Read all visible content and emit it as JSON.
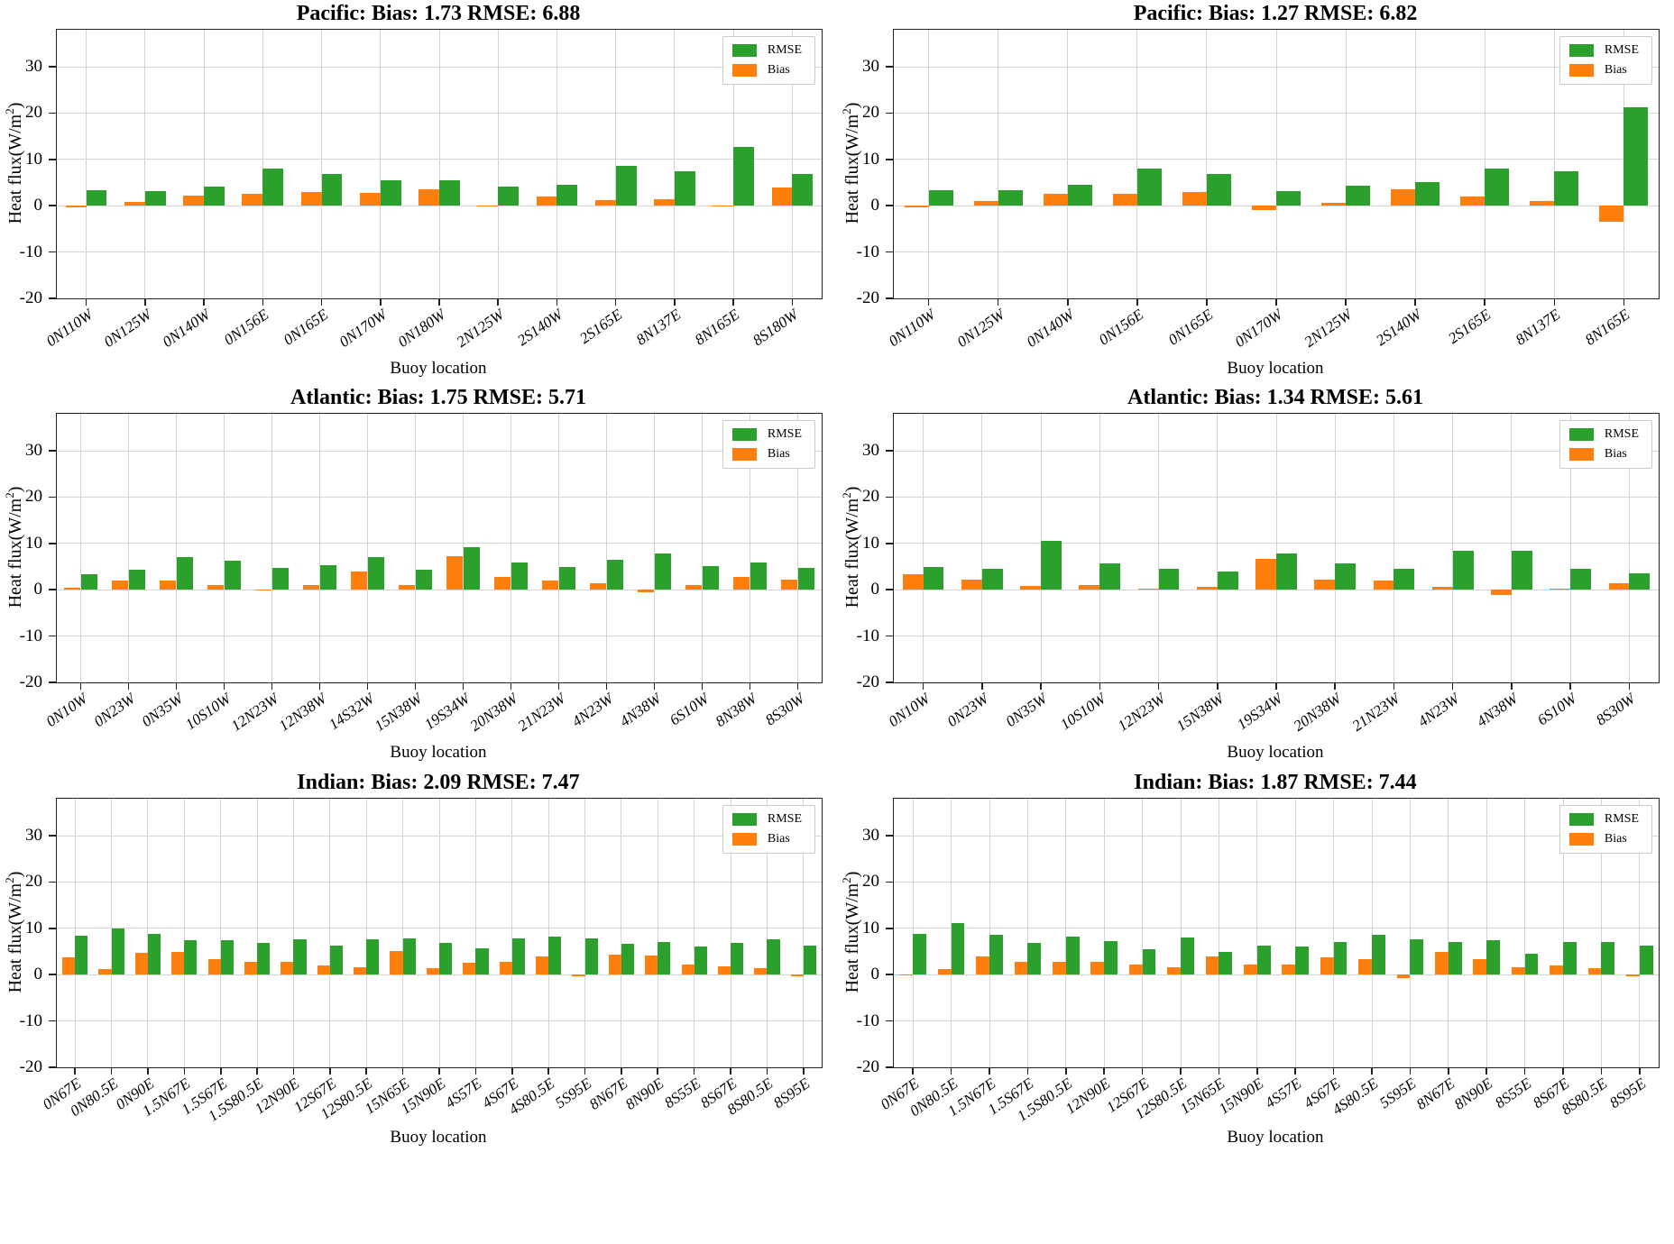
{
  "figure": {
    "background": "#ffffff"
  },
  "ylabel_parts": {
    "prefix": "Heat flux(W/m",
    "sup": "2",
    "suffix": ")"
  },
  "colors": {
    "rmse": "#2ca02c",
    "bias": "#ff7f0e",
    "grid": "#d4d4d4",
    "spine": "#212121"
  },
  "chart_data": [
    {
      "type": "bar",
      "title": "Pacific: Bias: 1.73 RMSE: 6.88",
      "xlabel": "Buoy location",
      "ylabel": "Heat flux(W/m2)",
      "ylim": [
        -20,
        38
      ],
      "yticks": [
        -20,
        -10,
        0,
        10,
        20,
        30
      ],
      "grid": true,
      "legend_position": "upper right",
      "legend": [
        {
          "label": "RMSE",
          "color": "#2ca02c"
        },
        {
          "label": "Bias",
          "color": "#ff7f0e"
        }
      ],
      "categories": [
        "0N110W",
        "0N125W",
        "0N140W",
        "0N156E",
        "0N165E",
        "0N170W",
        "0N180W",
        "2N125W",
        "2S140W",
        "2S165E",
        "8N137E",
        "8N165E",
        "8S180W"
      ],
      "series": [
        {
          "name": "Bias",
          "color": "#ff7f0e",
          "values": [
            -0.3,
            0.9,
            2.1,
            2.6,
            2.9,
            2.7,
            3.5,
            0.1,
            2.0,
            1.3,
            1.5,
            0.1,
            3.9
          ]
        },
        {
          "name": "RMSE",
          "color": "#2ca02c",
          "values": [
            3.3,
            3.1,
            4.1,
            8.0,
            6.8,
            5.5,
            5.4,
            4.1,
            4.6,
            8.7,
            7.4,
            12.7,
            6.9
          ]
        }
      ]
    },
    {
      "type": "bar",
      "title": "Pacific: Bias: 1.27 RMSE: 6.82",
      "xlabel": "Buoy location",
      "ylabel": "Heat flux(W/m2)",
      "ylim": [
        -20,
        38
      ],
      "yticks": [
        -20,
        -10,
        0,
        10,
        20,
        30
      ],
      "grid": true,
      "legend_position": "upper right",
      "legend": [
        {
          "label": "RMSE",
          "color": "#2ca02c"
        },
        {
          "label": "Bias",
          "color": "#ff7f0e"
        }
      ],
      "categories": [
        "0N110W",
        "0N125W",
        "0N140W",
        "0N156E",
        "0N165E",
        "0N170W",
        "2N125W",
        "2S140W",
        "2S165E",
        "8N137E",
        "8N165E"
      ],
      "series": [
        {
          "name": "Bias",
          "color": "#ff7f0e",
          "values": [
            -0.3,
            1.0,
            2.5,
            2.6,
            2.9,
            -0.9,
            0.6,
            3.5,
            1.9,
            1.0,
            -3.5
          ]
        },
        {
          "name": "RMSE",
          "color": "#2ca02c",
          "values": [
            3.4,
            3.3,
            4.6,
            8.0,
            6.9,
            3.1,
            4.4,
            5.2,
            8.0,
            7.5,
            21.3
          ]
        }
      ]
    },
    {
      "type": "bar",
      "title": "Atlantic: Bias: 1.75 RMSE: 5.71",
      "xlabel": "Buoy location",
      "ylabel": "Heat flux(W/m2)",
      "ylim": [
        -20,
        38
      ],
      "yticks": [
        -20,
        -10,
        0,
        10,
        20,
        30
      ],
      "grid": true,
      "legend_position": "upper right",
      "legend": [
        {
          "label": "RMSE",
          "color": "#2ca02c"
        },
        {
          "label": "Bias",
          "color": "#ff7f0e"
        }
      ],
      "categories": [
        "0N10W",
        "0N23W",
        "0N35W",
        "10S10W",
        "12N23W",
        "12N38W",
        "14S32W",
        "15N38W",
        "19S34W",
        "20N38W",
        "21N23W",
        "4N23W",
        "4N38W",
        "6S10W",
        "8N38W",
        "8S30W"
      ],
      "series": [
        {
          "name": "Bias",
          "color": "#ff7f0e",
          "values": [
            0.4,
            2.0,
            2.0,
            1.0,
            0.1,
            1.1,
            4.0,
            1.0,
            7.2,
            2.7,
            1.9,
            1.4,
            -0.5,
            1.0,
            2.7,
            2.2
          ]
        },
        {
          "name": "RMSE",
          "color": "#2ca02c",
          "values": [
            3.3,
            4.3,
            7.0,
            6.3,
            4.8,
            5.3,
            7.1,
            4.4,
            9.1,
            5.9,
            5.0,
            6.4,
            7.8,
            5.1,
            5.9,
            4.8
          ]
        }
      ]
    },
    {
      "type": "bar",
      "title": "Atlantic: Bias: 1.34 RMSE: 5.61",
      "xlabel": "Buoy location",
      "ylabel": "Heat flux(W/m2)",
      "ylim": [
        -20,
        38
      ],
      "yticks": [
        -20,
        -10,
        0,
        10,
        20,
        30
      ],
      "grid": true,
      "legend_position": "upper right",
      "legend": [
        {
          "label": "RMSE",
          "color": "#2ca02c"
        },
        {
          "label": "Bias",
          "color": "#ff7f0e"
        }
      ],
      "categories": [
        "0N10W",
        "0N23W",
        "0N35W",
        "10S10W",
        "12N23W",
        "15N38W",
        "19S34W",
        "20N38W",
        "21N23W",
        "4N23W",
        "4N38W",
        "6S10W",
        "8S30W"
      ],
      "series": [
        {
          "name": "Bias",
          "color": "#ff7f0e",
          "values": [
            3.3,
            2.1,
            0.8,
            1.1,
            0.2,
            0.6,
            6.6,
            2.2,
            2.0,
            0.6,
            -1.2,
            0.3,
            1.5
          ]
        },
        {
          "name": "RMSE",
          "color": "#2ca02c",
          "values": [
            5.0,
            4.5,
            10.5,
            5.6,
            4.5,
            4.0,
            7.8,
            5.7,
            4.6,
            8.5,
            8.4,
            4.5,
            3.6
          ]
        }
      ]
    },
    {
      "type": "bar",
      "title": "Indian: Bias: 2.09 RMSE: 7.47",
      "xlabel": "Buoy location",
      "ylabel": "Heat flux(W/m2)",
      "ylim": [
        -20,
        38
      ],
      "yticks": [
        -20,
        -10,
        0,
        10,
        20,
        30
      ],
      "grid": true,
      "legend_position": "upper right",
      "legend": [
        {
          "label": "RMSE",
          "color": "#2ca02c"
        },
        {
          "label": "Bias",
          "color": "#ff7f0e"
        }
      ],
      "categories": [
        "0N67E",
        "0N80.5E",
        "0N90E",
        "1.5N67E",
        "1.5S67E",
        "1.5S80.5E",
        "12N90E",
        "12S67E",
        "12S80.5E",
        "15N65E",
        "15N90E",
        "4S57E",
        "4S67E",
        "4S80.5E",
        "5S95E",
        "8N67E",
        "8N90E",
        "8S55E",
        "8S67E",
        "8S80.5E",
        "8S95E"
      ],
      "series": [
        {
          "name": "Bias",
          "color": "#ff7f0e",
          "values": [
            3.7,
            1.3,
            4.8,
            5.0,
            3.3,
            2.8,
            2.8,
            1.9,
            1.7,
            5.2,
            1.4,
            2.5,
            2.8,
            3.9,
            -0.4,
            4.4,
            4.1,
            2.1,
            1.8,
            1.5,
            -0.3
          ]
        },
        {
          "name": "RMSE",
          "color": "#2ca02c",
          "values": [
            8.4,
            10.0,
            8.9,
            7.4,
            7.5,
            6.9,
            7.7,
            6.3,
            7.7,
            7.8,
            6.8,
            5.6,
            7.9,
            8.3,
            7.9,
            6.6,
            7.0,
            6.1,
            6.8,
            7.7,
            6.3
          ]
        }
      ]
    },
    {
      "type": "bar",
      "title": "Indian: Bias: 1.87 RMSE: 7.44",
      "xlabel": "Buoy location",
      "ylabel": "Heat flux(W/m2)",
      "ylim": [
        -20,
        38
      ],
      "yticks": [
        -20,
        -10,
        0,
        10,
        20,
        30
      ],
      "grid": true,
      "legend_position": "upper right",
      "legend": [
        {
          "label": "RMSE",
          "color": "#2ca02c"
        },
        {
          "label": "Bias",
          "color": "#ff7f0e"
        }
      ],
      "categories": [
        "0N67E",
        "0N80.5E",
        "1.5N67E",
        "1.5S67E",
        "1.5S80.5E",
        "12N90E",
        "12S67E",
        "12S80.5E",
        "15N65E",
        "15N90E",
        "4S57E",
        "4S67E",
        "4S80.5E",
        "5S95E",
        "8N67E",
        "8N90E",
        "8S55E",
        "8S67E",
        "8S80.5E",
        "8S95E"
      ],
      "series": [
        {
          "name": "Bias",
          "color": "#ff7f0e",
          "values": [
            -0.2,
            1.2,
            4.0,
            2.7,
            2.7,
            2.8,
            2.1,
            1.7,
            4.0,
            2.1,
            2.2,
            3.7,
            3.4,
            -0.7,
            5.0,
            3.3,
            1.7,
            1.9,
            1.4,
            -0.3
          ]
        },
        {
          "name": "RMSE",
          "color": "#2ca02c",
          "values": [
            8.9,
            11.2,
            8.7,
            6.8,
            8.3,
            7.3,
            5.4,
            8.1,
            5.0,
            6.3,
            6.1,
            7.0,
            8.7,
            7.7,
            7.1,
            7.5,
            4.6,
            7.1,
            7.1,
            6.3
          ]
        }
      ]
    }
  ]
}
